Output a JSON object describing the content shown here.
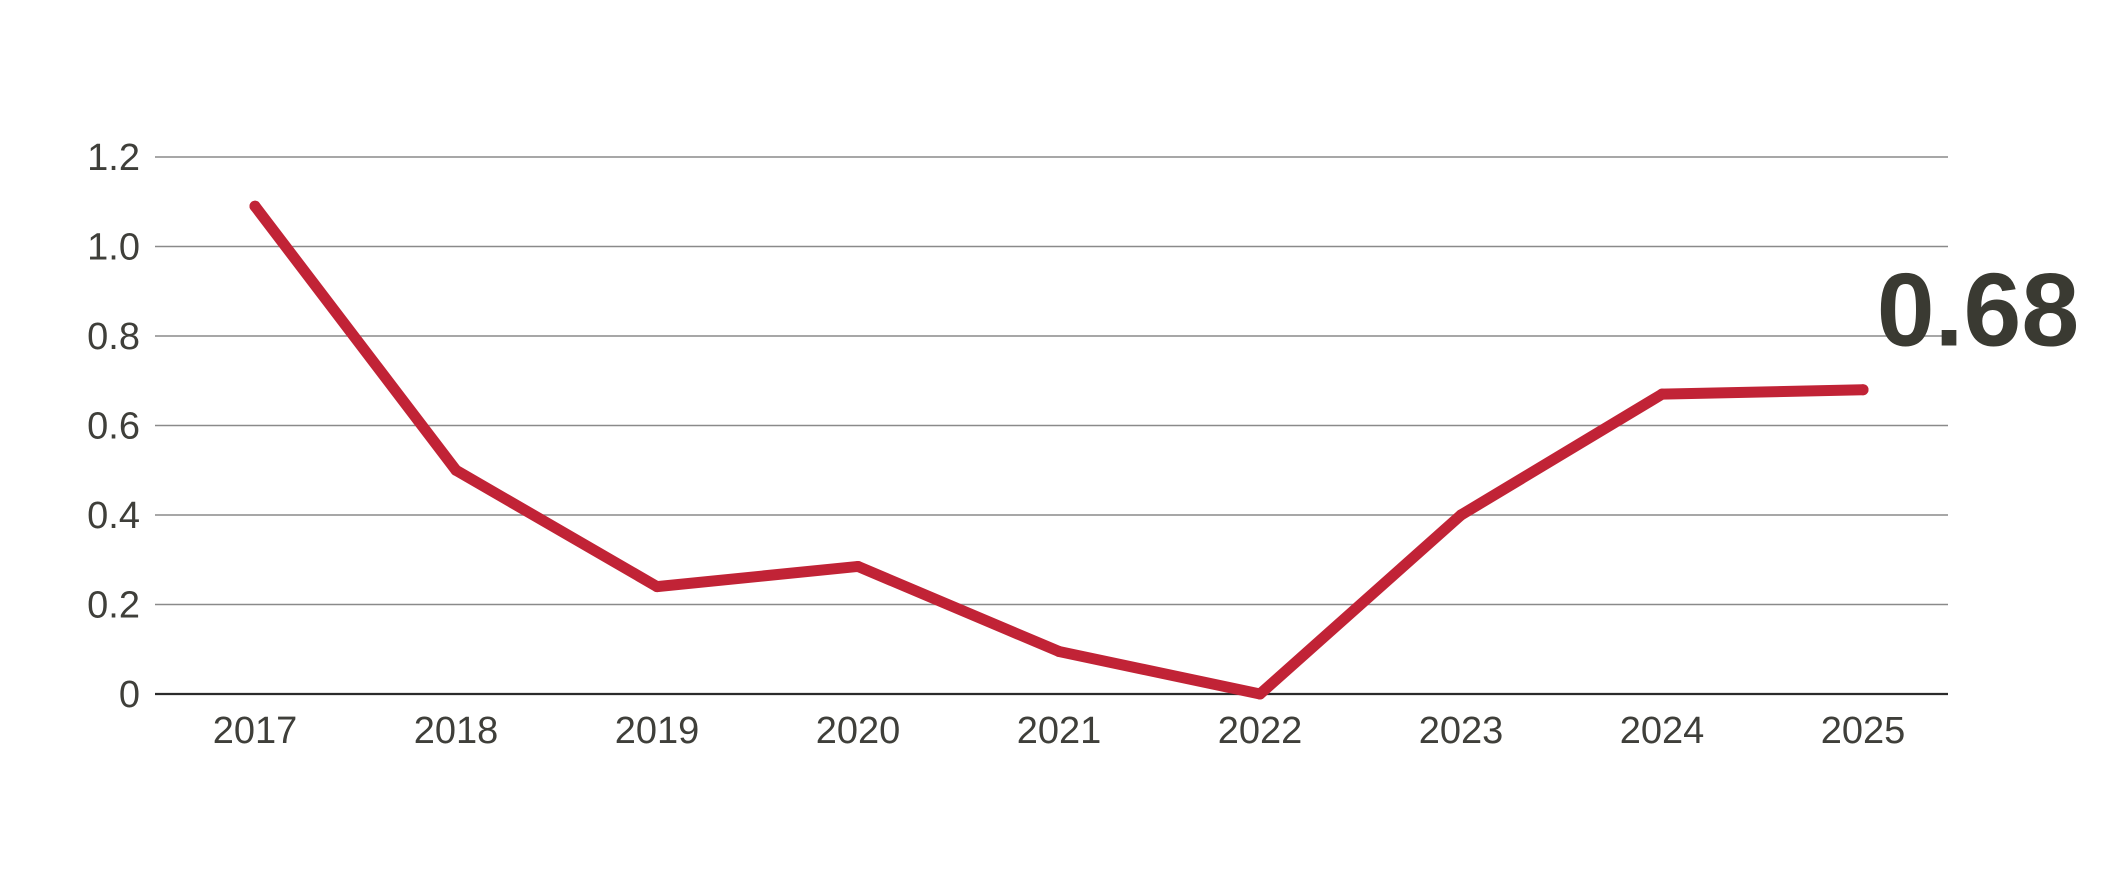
{
  "chart_data": {
    "type": "line",
    "title": "",
    "xlabel": "",
    "ylabel": "",
    "x": [
      "2017",
      "2018",
      "2019",
      "2020",
      "2021",
      "2022",
      "2023",
      "2024",
      "2025"
    ],
    "series": [
      {
        "values": [
          1.09,
          0.5,
          0.24,
          0.285,
          0.095,
          0.0,
          0.4,
          0.67,
          0.68
        ]
      }
    ],
    "y_ticks": [
      "0",
      "0.2",
      "0.4",
      "0.6",
      "0.8",
      "1.0",
      "1.2"
    ],
    "y_tick_values": [
      0,
      0.2,
      0.4,
      0.6,
      0.8,
      1.0,
      1.2
    ],
    "ylim": [
      0,
      1.2
    ],
    "grid": "horizontal",
    "legend": "none",
    "annotation": {
      "text": "0.68",
      "target": "2025"
    },
    "colors": {
      "line": "#c12336",
      "grid": "#8a8a8a",
      "axis": "#2b2b2b",
      "tick_text": "#3f3f3a",
      "annotation": "#3a3a32"
    }
  }
}
